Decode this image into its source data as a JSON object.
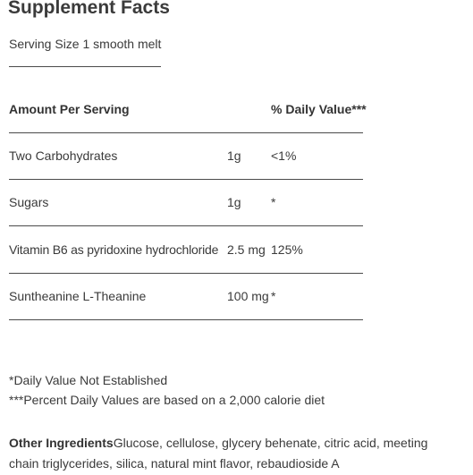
{
  "title": "Supplement Facts",
  "serving_size": "Serving Size 1 smooth melt",
  "header": {
    "amount_per_serving": "Amount Per Serving",
    "daily_value": "% Daily Value***"
  },
  "rows": [
    {
      "name": "Two Carbohydrates",
      "amount": "1g",
      "dv": "<1%"
    },
    {
      "name": "Sugars",
      "amount": "1g",
      "dv": "*"
    },
    {
      "name": "Vitamin B6 as pyridoxine hydrochloride",
      "amount": "2.5 mg",
      "dv": "125%"
    },
    {
      "name": "Suntheanine L-Theanine",
      "amount": "100 mg",
      "dv": "*"
    }
  ],
  "footnotes": [
    "*Daily Value Not Established",
    "***Percent Daily Values are based on a 2,000 calorie diet"
  ],
  "other_ingredients": {
    "label": "Other Ingredients",
    "text": "Glucose, cellulose, glycery behenate, citric acid, meeting chain triglycerides, silica, natural mint flavor, rebaudioside A"
  }
}
